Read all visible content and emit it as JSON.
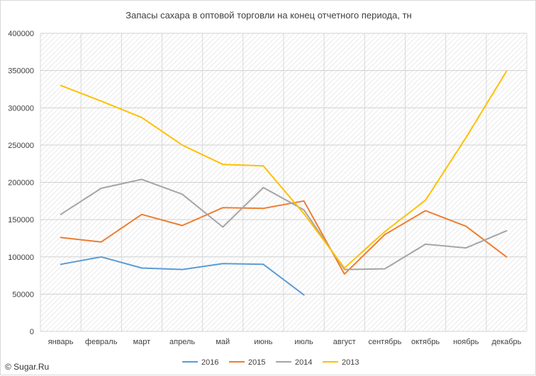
{
  "chart_data": {
    "type": "line",
    "title": "Запасы сахара в оптовой торговли на конец отчетного периода, тн",
    "xlabel": "",
    "ylabel": "",
    "categories": [
      "январь",
      "февраль",
      "март",
      "апрель",
      "май",
      "июнь",
      "июль",
      "август",
      "сентябрь",
      "октябрь",
      "ноябрь",
      "декабрь"
    ],
    "ylim": [
      0,
      400000
    ],
    "yticks": [
      "0",
      "50000",
      "100000",
      "150000",
      "200000",
      "250000",
      "300000",
      "350000",
      "400000"
    ],
    "grid": true,
    "legend_position": "bottom",
    "series": [
      {
        "name": "2016",
        "color": "#5b9bd5",
        "values": [
          90000,
          100000,
          85000,
          83000,
          91000,
          90000,
          49000,
          null,
          null,
          null,
          null,
          null
        ]
      },
      {
        "name": "2015",
        "color": "#ed7d31",
        "values": [
          126000,
          120000,
          157000,
          142000,
          166000,
          165000,
          175000,
          77000,
          130000,
          162000,
          141000,
          100000
        ]
      },
      {
        "name": "2014",
        "color": "#a5a5a5",
        "values": [
          157000,
          192000,
          204000,
          184000,
          140000,
          193000,
          163000,
          83000,
          84000,
          117000,
          112000,
          135000
        ]
      },
      {
        "name": "2013",
        "color": "#ffc000",
        "values": [
          330000,
          309000,
          287000,
          250000,
          224000,
          222000,
          158000,
          85000,
          134000,
          176000,
          260000,
          349000
        ]
      }
    ]
  },
  "watermark": "© Sugar.Ru"
}
